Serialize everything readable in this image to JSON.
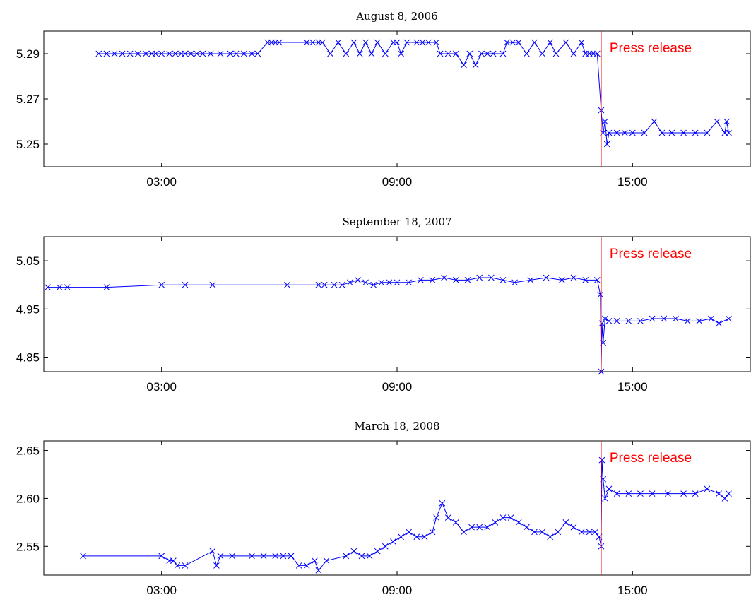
{
  "chart_data": [
    {
      "type": "line",
      "title": "August 8, 2006",
      "xlabel": "",
      "ylabel": "",
      "xlim": [
        0.0,
        18.0
      ],
      "ylim": [
        5.24,
        5.3
      ],
      "x_ticks": [
        3,
        9,
        15
      ],
      "x_tick_labels": [
        "03:00",
        "09:00",
        "15:00"
      ],
      "y_ticks": [
        5.25,
        5.27,
        5.29
      ],
      "y_tick_labels": [
        "5.25",
        "5.27",
        "5.29"
      ],
      "grid": false,
      "annotation": {
        "text": "Press release",
        "x": 14.2
      },
      "colors": {
        "series": "#0000ff",
        "event_line": "#ff0000",
        "annotation": "#ff0000"
      },
      "series": [
        {
          "marker": "x",
          "points": [
            [
              1.4,
              5.29
            ],
            [
              1.6,
              5.29
            ],
            [
              1.8,
              5.29
            ],
            [
              2.0,
              5.29
            ],
            [
              2.2,
              5.29
            ],
            [
              2.4,
              5.29
            ],
            [
              2.6,
              5.29
            ],
            [
              2.75,
              5.29
            ],
            [
              2.85,
              5.29
            ],
            [
              3.0,
              5.29
            ],
            [
              3.2,
              5.29
            ],
            [
              3.35,
              5.29
            ],
            [
              3.5,
              5.29
            ],
            [
              3.6,
              5.29
            ],
            [
              3.75,
              5.29
            ],
            [
              3.9,
              5.29
            ],
            [
              4.05,
              5.29
            ],
            [
              4.25,
              5.29
            ],
            [
              4.5,
              5.29
            ],
            [
              4.75,
              5.29
            ],
            [
              4.9,
              5.29
            ],
            [
              5.1,
              5.29
            ],
            [
              5.3,
              5.29
            ],
            [
              5.45,
              5.29
            ],
            [
              5.7,
              5.295
            ],
            [
              5.8,
              5.295
            ],
            [
              5.9,
              5.295
            ],
            [
              6.0,
              5.295
            ],
            [
              6.7,
              5.295
            ],
            [
              6.85,
              5.295
            ],
            [
              7.0,
              5.295
            ],
            [
              7.1,
              5.295
            ],
            [
              7.3,
              5.29
            ],
            [
              7.5,
              5.295
            ],
            [
              7.7,
              5.29
            ],
            [
              7.9,
              5.295
            ],
            [
              8.05,
              5.29
            ],
            [
              8.2,
              5.295
            ],
            [
              8.35,
              5.29
            ],
            [
              8.5,
              5.295
            ],
            [
              8.7,
              5.29
            ],
            [
              8.9,
              5.295
            ],
            [
              9.0,
              5.295
            ],
            [
              9.1,
              5.29
            ],
            [
              9.25,
              5.295
            ],
            [
              9.5,
              5.295
            ],
            [
              9.65,
              5.295
            ],
            [
              9.8,
              5.295
            ],
            [
              10.0,
              5.295
            ],
            [
              10.1,
              5.29
            ],
            [
              10.3,
              5.29
            ],
            [
              10.5,
              5.29
            ],
            [
              10.7,
              5.285
            ],
            [
              10.85,
              5.29
            ],
            [
              11.0,
              5.285
            ],
            [
              11.15,
              5.29
            ],
            [
              11.3,
              5.29
            ],
            [
              11.45,
              5.29
            ],
            [
              11.7,
              5.29
            ],
            [
              11.8,
              5.295
            ],
            [
              11.95,
              5.295
            ],
            [
              12.1,
              5.295
            ],
            [
              12.3,
              5.29
            ],
            [
              12.5,
              5.295
            ],
            [
              12.7,
              5.29
            ],
            [
              12.9,
              5.295
            ],
            [
              13.05,
              5.29
            ],
            [
              13.3,
              5.295
            ],
            [
              13.5,
              5.29
            ],
            [
              13.7,
              5.295
            ],
            [
              13.8,
              5.29
            ],
            [
              13.9,
              5.29
            ],
            [
              14.0,
              5.29
            ],
            [
              14.1,
              5.29
            ],
            [
              14.2,
              5.265
            ],
            [
              14.25,
              5.255
            ],
            [
              14.3,
              5.26
            ],
            [
              14.35,
              5.25
            ],
            [
              14.4,
              5.255
            ],
            [
              14.6,
              5.255
            ],
            [
              14.8,
              5.255
            ],
            [
              15.0,
              5.255
            ],
            [
              15.3,
              5.255
            ],
            [
              15.55,
              5.26
            ],
            [
              15.75,
              5.255
            ],
            [
              16.0,
              5.255
            ],
            [
              16.3,
              5.255
            ],
            [
              16.6,
              5.255
            ],
            [
              16.9,
              5.255
            ],
            [
              17.15,
              5.26
            ],
            [
              17.35,
              5.255
            ],
            [
              17.4,
              5.26
            ],
            [
              17.45,
              5.255
            ]
          ]
        }
      ]
    },
    {
      "type": "line",
      "title": "September 18, 2007",
      "xlabel": "",
      "ylabel": "",
      "xlim": [
        0.0,
        18.0
      ],
      "ylim": [
        4.82,
        5.1
      ],
      "x_ticks": [
        3,
        9,
        15
      ],
      "x_tick_labels": [
        "03:00",
        "09:00",
        "15:00"
      ],
      "y_ticks": [
        4.85,
        4.95,
        5.05
      ],
      "y_tick_labels": [
        "4.85",
        "4.95",
        "5.05"
      ],
      "grid": false,
      "annotation": {
        "text": "Press release",
        "x": 14.2
      },
      "colors": {
        "series": "#0000ff",
        "event_line": "#ff0000",
        "annotation": "#ff0000"
      },
      "series": [
        {
          "marker": "x",
          "points": [
            [
              0.1,
              4.995
            ],
            [
              0.4,
              4.995
            ],
            [
              0.6,
              4.995
            ],
            [
              1.6,
              4.995
            ],
            [
              3.0,
              5.0
            ],
            [
              3.6,
              5.0
            ],
            [
              4.3,
              5.0
            ],
            [
              6.2,
              5.0
            ],
            [
              7.0,
              5.0
            ],
            [
              7.15,
              5.0
            ],
            [
              7.4,
              5.0
            ],
            [
              7.6,
              5.0
            ],
            [
              7.8,
              5.005
            ],
            [
              8.0,
              5.01
            ],
            [
              8.2,
              5.005
            ],
            [
              8.4,
              5.0
            ],
            [
              8.6,
              5.005
            ],
            [
              8.8,
              5.005
            ],
            [
              9.0,
              5.005
            ],
            [
              9.3,
              5.005
            ],
            [
              9.6,
              5.01
            ],
            [
              9.9,
              5.01
            ],
            [
              10.2,
              5.015
            ],
            [
              10.5,
              5.01
            ],
            [
              10.8,
              5.01
            ],
            [
              11.1,
              5.015
            ],
            [
              11.4,
              5.015
            ],
            [
              11.7,
              5.01
            ],
            [
              12.0,
              5.005
            ],
            [
              12.4,
              5.01
            ],
            [
              12.8,
              5.015
            ],
            [
              13.2,
              5.01
            ],
            [
              13.5,
              5.015
            ],
            [
              13.8,
              5.01
            ],
            [
              14.1,
              5.01
            ],
            [
              14.18,
              4.98
            ],
            [
              14.2,
              4.82
            ],
            [
              14.22,
              4.92
            ],
            [
              14.25,
              4.88
            ],
            [
              14.3,
              4.93
            ],
            [
              14.4,
              4.925
            ],
            [
              14.6,
              4.925
            ],
            [
              14.9,
              4.925
            ],
            [
              15.2,
              4.925
            ],
            [
              15.5,
              4.93
            ],
            [
              15.8,
              4.93
            ],
            [
              16.1,
              4.93
            ],
            [
              16.4,
              4.925
            ],
            [
              16.7,
              4.925
            ],
            [
              17.0,
              4.93
            ],
            [
              17.2,
              4.92
            ],
            [
              17.45,
              4.93
            ]
          ]
        }
      ]
    },
    {
      "type": "line",
      "title": "March 18, 2008",
      "xlabel": "",
      "ylabel": "",
      "xlim": [
        0.0,
        18.0
      ],
      "ylim": [
        2.52,
        2.66
      ],
      "x_ticks": [
        3,
        9,
        15
      ],
      "x_tick_labels": [
        "03:00",
        "09:00",
        "15:00"
      ],
      "y_ticks": [
        2.55,
        2.6,
        2.65
      ],
      "y_tick_labels": [
        "2.55",
        "2.60",
        "2.65"
      ],
      "grid": false,
      "annotation": {
        "text": "Press release",
        "x": 14.2
      },
      "colors": {
        "series": "#0000ff",
        "event_line": "#ff0000",
        "annotation": "#ff0000"
      },
      "series": [
        {
          "marker": "x",
          "points": [
            [
              1.0,
              2.54
            ],
            [
              3.0,
              2.54
            ],
            [
              3.2,
              2.535
            ],
            [
              3.3,
              2.535
            ],
            [
              3.4,
              2.53
            ],
            [
              3.6,
              2.53
            ],
            [
              4.3,
              2.545
            ],
            [
              4.4,
              2.53
            ],
            [
              4.5,
              2.54
            ],
            [
              4.8,
              2.54
            ],
            [
              5.3,
              2.54
            ],
            [
              5.6,
              2.54
            ],
            [
              5.9,
              2.54
            ],
            [
              6.1,
              2.54
            ],
            [
              6.3,
              2.54
            ],
            [
              6.5,
              2.53
            ],
            [
              6.7,
              2.53
            ],
            [
              6.9,
              2.535
            ],
            [
              7.0,
              2.525
            ],
            [
              7.2,
              2.535
            ],
            [
              7.7,
              2.54
            ],
            [
              7.9,
              2.545
            ],
            [
              8.1,
              2.54
            ],
            [
              8.3,
              2.54
            ],
            [
              8.5,
              2.545
            ],
            [
              8.7,
              2.55
            ],
            [
              8.9,
              2.555
            ],
            [
              9.1,
              2.56
            ],
            [
              9.3,
              2.565
            ],
            [
              9.5,
              2.56
            ],
            [
              9.7,
              2.56
            ],
            [
              9.9,
              2.565
            ],
            [
              10.0,
              2.58
            ],
            [
              10.15,
              2.595
            ],
            [
              10.3,
              2.58
            ],
            [
              10.5,
              2.575
            ],
            [
              10.7,
              2.565
            ],
            [
              10.9,
              2.57
            ],
            [
              11.1,
              2.57
            ],
            [
              11.3,
              2.57
            ],
            [
              11.5,
              2.575
            ],
            [
              11.7,
              2.58
            ],
            [
              11.9,
              2.58
            ],
            [
              12.1,
              2.575
            ],
            [
              12.3,
              2.57
            ],
            [
              12.5,
              2.565
            ],
            [
              12.7,
              2.565
            ],
            [
              12.9,
              2.56
            ],
            [
              13.1,
              2.565
            ],
            [
              13.3,
              2.575
            ],
            [
              13.5,
              2.57
            ],
            [
              13.7,
              2.565
            ],
            [
              13.9,
              2.565
            ],
            [
              14.05,
              2.565
            ],
            [
              14.15,
              2.56
            ],
            [
              14.2,
              2.55
            ],
            [
              14.22,
              2.64
            ],
            [
              14.25,
              2.62
            ],
            [
              14.3,
              2.6
            ],
            [
              14.4,
              2.61
            ],
            [
              14.6,
              2.605
            ],
            [
              14.9,
              2.605
            ],
            [
              15.2,
              2.605
            ],
            [
              15.5,
              2.605
            ],
            [
              15.9,
              2.605
            ],
            [
              16.3,
              2.605
            ],
            [
              16.6,
              2.605
            ],
            [
              16.9,
              2.61
            ],
            [
              17.2,
              2.605
            ],
            [
              17.35,
              2.6
            ],
            [
              17.45,
              2.605
            ]
          ]
        }
      ]
    }
  ]
}
